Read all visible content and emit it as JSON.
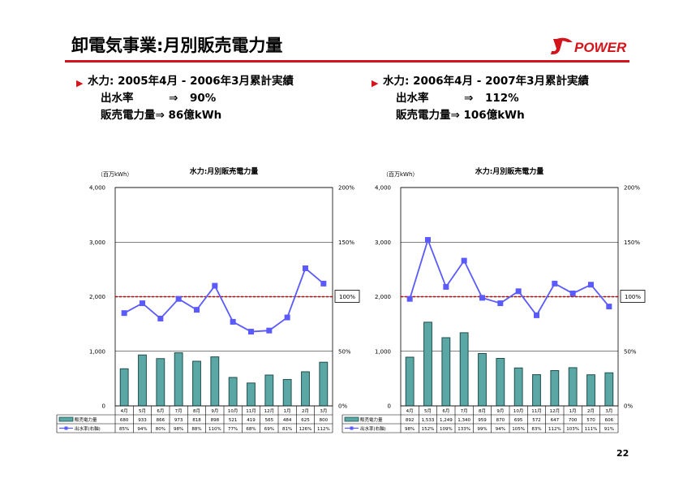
{
  "page": {
    "title": "卸電気事業:月別販売電力量",
    "page_number": "22",
    "logo_text": "POWER",
    "accent_color": "#d4141b",
    "bar_color": "#5aa7a5",
    "line_color": "#5a5aff"
  },
  "summaries": [
    {
      "heading": "水力: 2005年4月 - 2006年3月累計実績",
      "line1_label": "出水率",
      "line1_arrow": "⇒",
      "line1_value": "90%",
      "line2_label": "販売電力量⇒",
      "line2_value": "86億kWh"
    },
    {
      "heading": "水力: 2006年4月 - 2007年3月累計実績",
      "line1_label": "出水率",
      "line1_arrow": "⇒",
      "line1_value": "112%",
      "line2_label": "販売電力量⇒",
      "line2_value": "106億kWh"
    }
  ],
  "chart_data": [
    {
      "type": "bar",
      "title": "水力:月別販売電力量",
      "unit_label": "（百万kWh）",
      "categories": [
        "4月",
        "5月",
        "6月",
        "7月",
        "8月",
        "9月",
        "10月",
        "11月",
        "12月",
        "1月",
        "2月",
        "3月"
      ],
      "ylim": [
        0,
        4000
      ],
      "y_ticks": [
        "0",
        "1,000",
        "2,000",
        "3,000",
        "4,000"
      ],
      "y2lim": [
        0,
        200
      ],
      "y2_ticks": [
        "0%",
        "50%",
        "100%",
        "150%",
        "200%"
      ],
      "reference_label": "100%",
      "reference_value": 100,
      "series": [
        {
          "name": "販売電力量",
          "kind": "bar",
          "axis": "left",
          "values": [
            680,
            933,
            866,
            973,
            818,
            898,
            521,
            419,
            565,
            484,
            625,
            800
          ],
          "labels": [
            "680",
            "933",
            "866",
            "973",
            "818",
            "898",
            "521",
            "419",
            "565",
            "484",
            "625",
            "800"
          ]
        },
        {
          "name": "出水率(右軸)",
          "kind": "line",
          "axis": "right",
          "values": [
            85,
            94,
            80,
            98,
            88,
            110,
            77,
            68,
            69,
            81,
            126,
            112
          ],
          "labels": [
            "85%",
            "94%",
            "80%",
            "98%",
            "88%",
            "110%",
            "77%",
            "68%",
            "69%",
            "81%",
            "126%",
            "112%"
          ]
        }
      ]
    },
    {
      "type": "bar",
      "title": "水力:月別販売電力量",
      "unit_label": "（百万kWh）",
      "categories": [
        "4月",
        "5月",
        "6月",
        "7月",
        "8月",
        "9月",
        "10月",
        "11月",
        "12月",
        "1月",
        "2月",
        "3月"
      ],
      "ylim": [
        0,
        4000
      ],
      "y_ticks": [
        "0",
        "1,000",
        "2,000",
        "3,000",
        "4,000"
      ],
      "y2lim": [
        0,
        200
      ],
      "y2_ticks": [
        "0%",
        "50%",
        "100%",
        "150%",
        "200%"
      ],
      "reference_label": "100%",
      "reference_value": 100,
      "series": [
        {
          "name": "販売電力量",
          "kind": "bar",
          "axis": "left",
          "values": [
            892,
            1533,
            1249,
            1340,
            959,
            870,
            695,
            572,
            647,
            700,
            570,
            606
          ],
          "labels": [
            "892",
            "1,533",
            "1,249",
            "1,340",
            "959",
            "870",
            "695",
            "572",
            "647",
            "700",
            "570",
            "606"
          ]
        },
        {
          "name": "出水率(右軸)",
          "kind": "line",
          "axis": "right",
          "values": [
            98,
            152,
            109,
            133,
            99,
            94,
            105,
            83,
            112,
            103,
            111,
            91
          ],
          "labels": [
            "98%",
            "152%",
            "109%",
            "133%",
            "99%",
            "94%",
            "105%",
            "83%",
            "112%",
            "103%",
            "111%",
            "91%"
          ]
        }
      ]
    }
  ]
}
